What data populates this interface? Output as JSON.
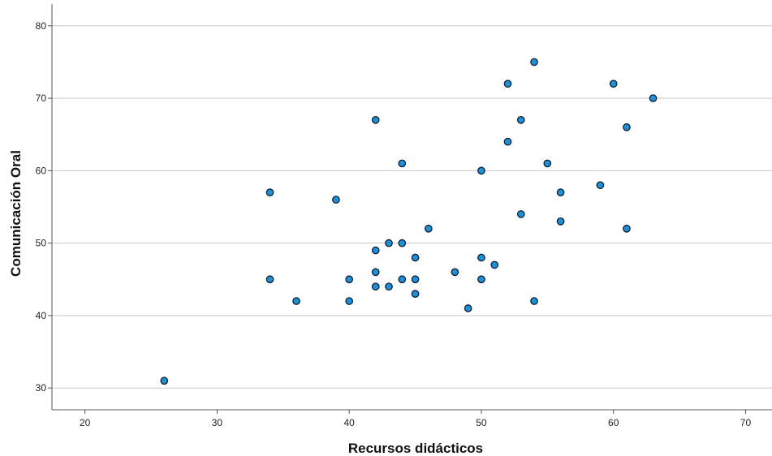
{
  "chart_data": {
    "type": "scatter",
    "title": "",
    "xlabel": "Recursos didácticos",
    "ylabel": "Comunicación Oral",
    "xlim": [
      17.5,
      72
    ],
    "ylim": [
      27,
      83
    ],
    "xticks": [
      20,
      30,
      40,
      50,
      60,
      70
    ],
    "yticks": [
      30,
      40,
      50,
      60,
      70,
      80
    ],
    "grid": "horizontal",
    "colors": {
      "marker_fill": "#1f8fd8",
      "marker_stroke": "#0b1f33",
      "grid": "#c8c8c8",
      "axis": "#555555"
    },
    "points": [
      {
        "x": 26,
        "y": 31
      },
      {
        "x": 34,
        "y": 57
      },
      {
        "x": 34,
        "y": 45
      },
      {
        "x": 36,
        "y": 42
      },
      {
        "x": 39,
        "y": 56
      },
      {
        "x": 40,
        "y": 45
      },
      {
        "x": 40,
        "y": 42
      },
      {
        "x": 42,
        "y": 67
      },
      {
        "x": 42,
        "y": 49
      },
      {
        "x": 42,
        "y": 46
      },
      {
        "x": 42,
        "y": 44
      },
      {
        "x": 43,
        "y": 50
      },
      {
        "x": 43,
        "y": 44
      },
      {
        "x": 44,
        "y": 61
      },
      {
        "x": 44,
        "y": 50
      },
      {
        "x": 44,
        "y": 45
      },
      {
        "x": 45,
        "y": 48
      },
      {
        "x": 45,
        "y": 45
      },
      {
        "x": 45,
        "y": 43
      },
      {
        "x": 46,
        "y": 52
      },
      {
        "x": 48,
        "y": 46
      },
      {
        "x": 49,
        "y": 41
      },
      {
        "x": 50,
        "y": 60
      },
      {
        "x": 50,
        "y": 48
      },
      {
        "x": 50,
        "y": 45
      },
      {
        "x": 51,
        "y": 47
      },
      {
        "x": 52,
        "y": 72
      },
      {
        "x": 52,
        "y": 64
      },
      {
        "x": 53,
        "y": 67
      },
      {
        "x": 53,
        "y": 54
      },
      {
        "x": 54,
        "y": 75
      },
      {
        "x": 54,
        "y": 42
      },
      {
        "x": 55,
        "y": 61
      },
      {
        "x": 56,
        "y": 57
      },
      {
        "x": 56,
        "y": 53
      },
      {
        "x": 59,
        "y": 58
      },
      {
        "x": 60,
        "y": 72
      },
      {
        "x": 61,
        "y": 66
      },
      {
        "x": 61,
        "y": 52
      },
      {
        "x": 63,
        "y": 70
      }
    ]
  }
}
